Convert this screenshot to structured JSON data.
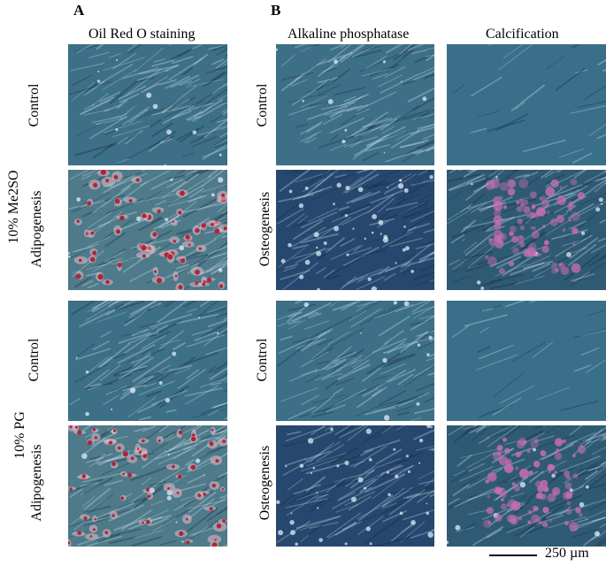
{
  "panels": {
    "a": "A",
    "b": "B"
  },
  "headers": {
    "oil": "Oil Red O staining",
    "alp": "Alkaline phosphatase",
    "calc": "Calcification"
  },
  "groups": {
    "me2so": "10% Me2SO",
    "pg": "10% PG"
  },
  "rows": {
    "r1a": "Control",
    "r2a": "Adipogenesis",
    "r3a": "Control",
    "r4a": "Adipogenesis",
    "r1b": "Control",
    "r2b": "Osteogenesis",
    "r3b": "Control",
    "r4b": "Osteogenesis"
  },
  "scale": {
    "label": "250 µm"
  },
  "colors": {
    "control_bg": "#3d6f86",
    "calc_control_bg": "#3a6f8a",
    "osteo_bg": "#27476e",
    "adipo_bg": "#4e7a8a",
    "oil_red": "#b02538",
    "calc_pink": "#c870b0"
  },
  "images": [
    {
      "id": "oil-me2so-control",
      "kind": "control",
      "seed": 11
    },
    {
      "id": "oil-me2so-adipogenesis",
      "kind": "adipo",
      "seed": 12
    },
    {
      "id": "oil-pg-control",
      "kind": "control",
      "seed": 13
    },
    {
      "id": "oil-pg-adipogenesis",
      "kind": "adipo",
      "seed": 14
    },
    {
      "id": "alp-me2so-control",
      "kind": "control",
      "seed": 21
    },
    {
      "id": "alp-me2so-osteogenesis",
      "kind": "osteo",
      "seed": 22
    },
    {
      "id": "alp-pg-control",
      "kind": "control",
      "seed": 23
    },
    {
      "id": "alp-pg-osteogenesis",
      "kind": "osteo",
      "seed": 24
    },
    {
      "id": "calc-me2so-control",
      "kind": "calc-control",
      "seed": 31
    },
    {
      "id": "calc-me2so-osteogenesis",
      "kind": "calc",
      "seed": 32
    },
    {
      "id": "calc-pg-control",
      "kind": "calc-control",
      "seed": 33
    },
    {
      "id": "calc-pg-osteogenesis",
      "kind": "calc",
      "seed": 34
    }
  ]
}
